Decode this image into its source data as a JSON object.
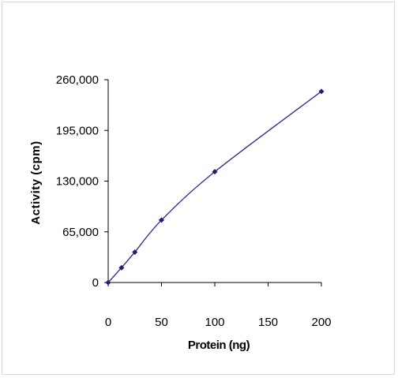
{
  "chart_data": {
    "type": "line",
    "title": "",
    "xlabel": "Protein (ng)",
    "ylabel": "Activity (cpm)",
    "xlim": [
      0,
      200
    ],
    "ylim": [
      0,
      260000
    ],
    "x_ticks": [
      0,
      50,
      100,
      150,
      200
    ],
    "x_tick_labels": [
      "0",
      "50",
      "100",
      "150",
      "200"
    ],
    "y_ticks": [
      0,
      65000,
      130000,
      195000,
      260000
    ],
    "y_tick_labels": [
      "0",
      "65,000",
      "130,000",
      "195,000",
      "260,000"
    ],
    "grid": false,
    "legend": "none",
    "series": [
      {
        "color": "#2b2b8f",
        "marker": "diamond",
        "x": [
          0,
          12.5,
          25,
          50,
          100,
          200
        ],
        "y": [
          0,
          19000,
          39000,
          80000,
          142000,
          245000
        ]
      }
    ]
  }
}
